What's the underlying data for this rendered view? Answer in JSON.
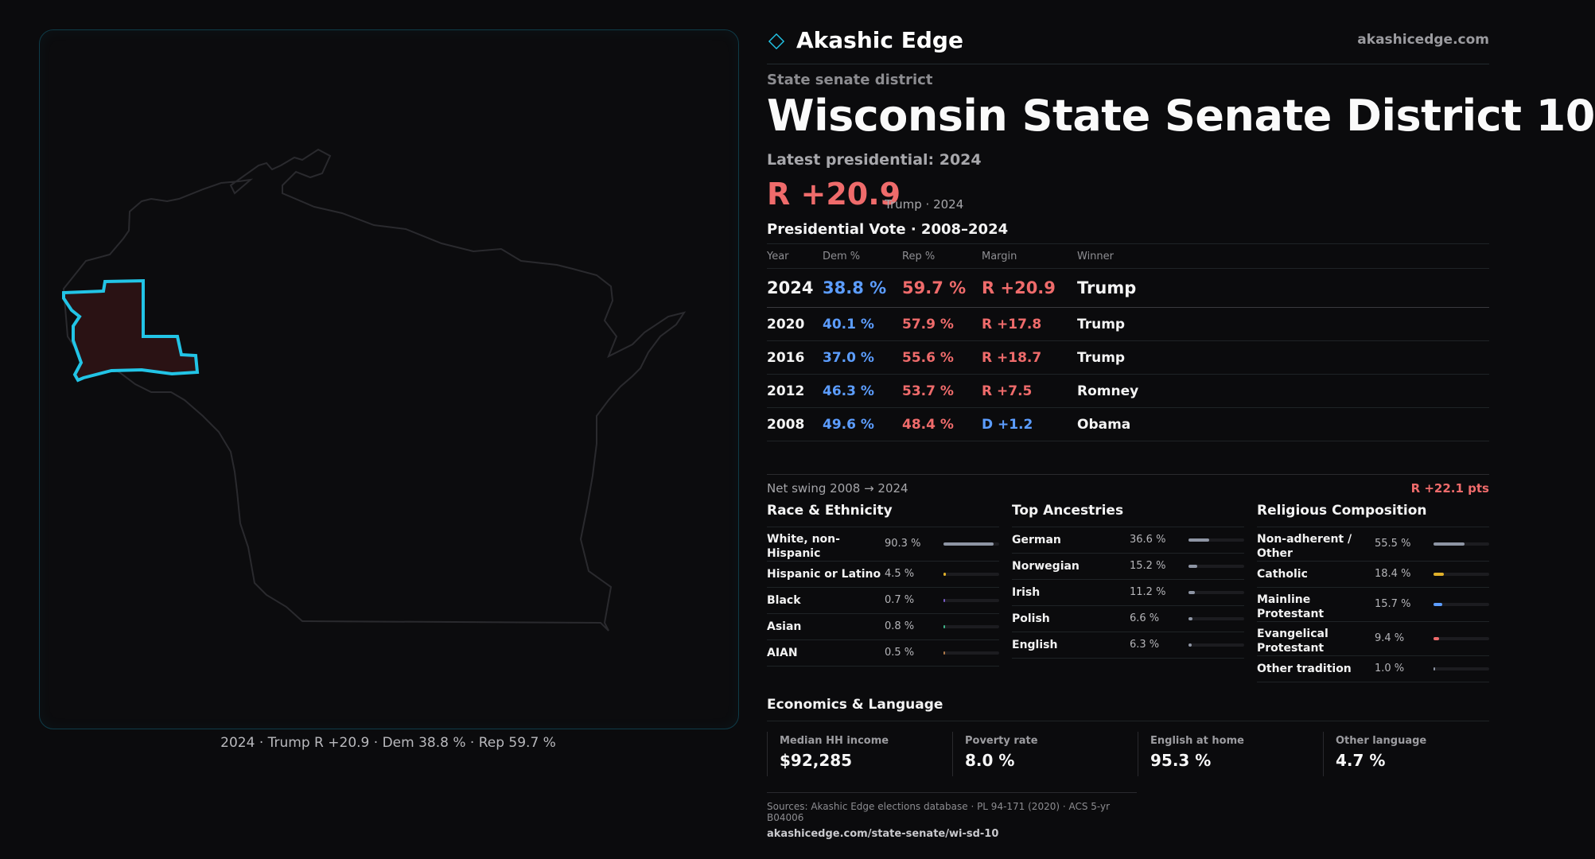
{
  "map": {
    "caption": "2024 · Trump R +20.9 · Dem 38.8 % · Rep 59.7 %",
    "outline_color": "#2a2a2e",
    "district_stroke": "#22c4e6",
    "district_fill": "#2a1214"
  },
  "brand": {
    "name": "Akashic Edge",
    "url": "akashicedge.com",
    "icon": "diamond-icon"
  },
  "header": {
    "kicker": "State senate district",
    "title": "Wisconsin State Senate District 10",
    "latest_label": "Latest presidential: 2024",
    "margin": "R +20.9",
    "margin_sub": "Trump · 2024"
  },
  "presidential": {
    "title": "Presidential Vote · 2008–2024",
    "columns": [
      "Year",
      "Dem %",
      "Rep %",
      "Margin",
      "Winner"
    ],
    "rows": [
      {
        "year": "2024",
        "dem": "38.8 %",
        "rep": "59.7 %",
        "margin": "R +20.9",
        "winner": "Trump",
        "party": "R"
      },
      {
        "year": "2020",
        "dem": "40.1 %",
        "rep": "57.9 %",
        "margin": "R +17.8",
        "winner": "Trump",
        "party": "R"
      },
      {
        "year": "2016",
        "dem": "37.0 %",
        "rep": "55.6 %",
        "margin": "R +18.7",
        "winner": "Trump",
        "party": "R"
      },
      {
        "year": "2012",
        "dem": "46.3 %",
        "rep": "53.7 %",
        "margin": "R +7.5",
        "winner": "Romney",
        "party": "R"
      },
      {
        "year": "2008",
        "dem": "49.6 %",
        "rep": "48.4 %",
        "margin": "D +1.2",
        "winner": "Obama",
        "party": "D"
      }
    ],
    "swing_label": "Net swing 2008 → 2024",
    "swing_value": "R +22.1 pts"
  },
  "race": {
    "title": "Race & Ethnicity",
    "items": [
      {
        "label": "White, non-Hispanic",
        "pct": "90.3 %",
        "value": 0.903,
        "color": "#8e95a4"
      },
      {
        "label": "Hispanic or Latino",
        "pct": "4.5 %",
        "value": 0.045,
        "color": "#e0b02a"
      },
      {
        "label": "Black",
        "pct": "0.7 %",
        "value": 0.007,
        "color": "#7a5cc8"
      },
      {
        "label": "Asian",
        "pct": "0.8 %",
        "value": 0.008,
        "color": "#3fb58a"
      },
      {
        "label": "AIAN",
        "pct": "0.5 %",
        "value": 0.005,
        "color": "#b07a4a"
      }
    ]
  },
  "ancestry": {
    "title": "Top Ancestries",
    "items": [
      {
        "label": "German",
        "pct": "36.6 %",
        "value": 0.366,
        "color": "#8e95a4"
      },
      {
        "label": "Norwegian",
        "pct": "15.2 %",
        "value": 0.152,
        "color": "#8e95a4"
      },
      {
        "label": "Irish",
        "pct": "11.2 %",
        "value": 0.112,
        "color": "#8e95a4"
      },
      {
        "label": "Polish",
        "pct": "6.6 %",
        "value": 0.066,
        "color": "#8e95a4"
      },
      {
        "label": "English",
        "pct": "6.3 %",
        "value": 0.063,
        "color": "#8e95a4"
      }
    ]
  },
  "religion": {
    "title": "Religious Composition",
    "items": [
      {
        "label": "Non-adherent / Other",
        "pct": "55.5 %",
        "value": 0.555,
        "color": "#8e95a4"
      },
      {
        "label": "Catholic",
        "pct": "18.4 %",
        "value": 0.184,
        "color": "#e0b02a"
      },
      {
        "label": "Mainline Protestant",
        "pct": "15.7 %",
        "value": 0.157,
        "color": "#5c9dff"
      },
      {
        "label": "Evangelical Protestant",
        "pct": "9.4 %",
        "value": 0.094,
        "color": "#ef6b6b"
      },
      {
        "label": "Other tradition",
        "pct": "1.0 %",
        "value": 0.01,
        "color": "#8e95a4"
      }
    ]
  },
  "economics": {
    "title": "Economics & Language",
    "items": [
      {
        "label": "Median HH income",
        "value": "$92,285"
      },
      {
        "label": "Poverty rate",
        "value": "8.0 %"
      },
      {
        "label": "English at home",
        "value": "95.3 %"
      },
      {
        "label": "Other language",
        "value": "4.7 %"
      }
    ]
  },
  "sources": {
    "line": "Sources: Akashic Edge elections database · PL 94-171 (2020) · ACS 5-yr B04006",
    "url": "akashicedge.com/state-senate/wi-sd-10"
  },
  "colors": {
    "dem": "#5c9dff",
    "rep": "#ef6b6b",
    "accent": "#22c4e6"
  }
}
